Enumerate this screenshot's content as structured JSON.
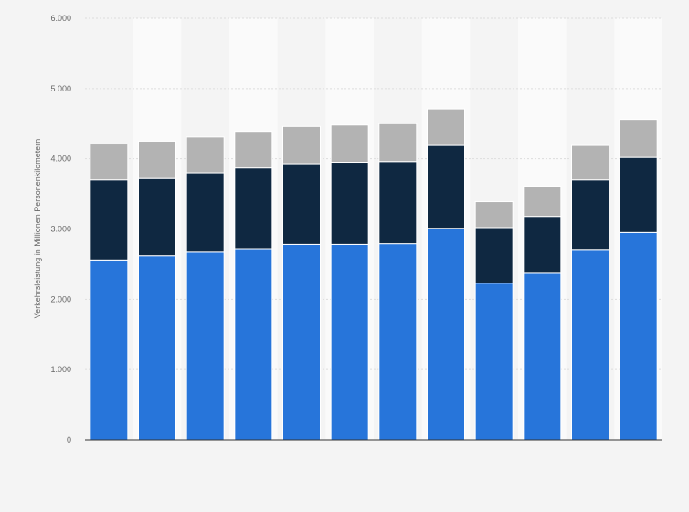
{
  "chart_data": {
    "type": "bar",
    "stacked": true,
    "title": "",
    "xlabel": "",
    "ylabel": "Verkehrsleistung in Millionen Personenkilometern",
    "ylim": [
      0,
      6000
    ],
    "yticks": [
      0,
      1000,
      2000,
      3000,
      4000,
      5000,
      6000
    ],
    "ytick_labels": [
      "0",
      "1.000",
      "2.000",
      "3.000",
      "4.000",
      "5.000",
      "6.000"
    ],
    "grid": true,
    "bar_count": 12,
    "series": [
      {
        "color": "#2775da",
        "values": [
          2560,
          2620,
          2670,
          2720,
          2780,
          2780,
          2790,
          3010,
          2230,
          2370,
          2710,
          2950
        ]
      },
      {
        "color": "#0f2841",
        "values": [
          1140,
          1100,
          1130,
          1150,
          1150,
          1170,
          1170,
          1180,
          790,
          810,
          990,
          1070
        ]
      },
      {
        "color": "#b3b3b3",
        "values": [
          510,
          530,
          510,
          520,
          530,
          530,
          540,
          520,
          370,
          430,
          490,
          540
        ]
      }
    ]
  }
}
